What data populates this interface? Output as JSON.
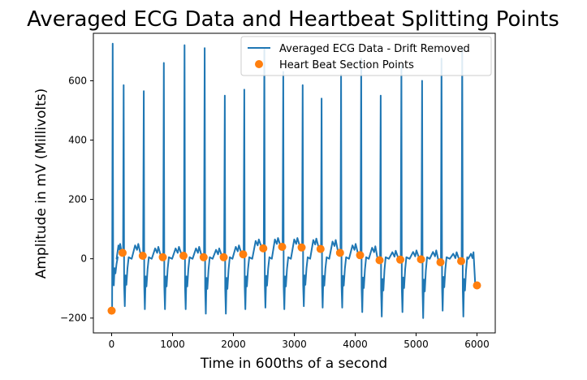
{
  "chart_data": {
    "type": "line",
    "title": "Averaged ECG Data and Heartbeat Splitting Points",
    "xlabel": "Time in 600ths of a second",
    "ylabel": "Amplitude in mV (Millivolts)",
    "xlim": [
      -300,
      6300
    ],
    "ylim": [
      -250,
      760
    ],
    "xticks": [
      0,
      1000,
      2000,
      3000,
      4000,
      5000,
      6000
    ],
    "yticks": [
      -200,
      0,
      200,
      400,
      600
    ],
    "grid": false,
    "legend_position": "top-right",
    "series": [
      {
        "name": "Averaged ECG Data - Drift Removed",
        "kind": "line",
        "color": "#1f77b4",
        "segment_bounds": [
          0,
          180,
          510,
          840,
          1180,
          1510,
          1840,
          2160,
          2490,
          2800,
          3120,
          3430,
          3750,
          4080,
          4400,
          4740,
          5080,
          5400,
          5740,
          6000
        ],
        "peaks": [
          725,
          585,
          565,
          660,
          720,
          710,
          550,
          570,
          710,
          630,
          585,
          540,
          620,
          675,
          550,
          650,
          600,
          675,
          710
        ],
        "troughs": [
          -90,
          -160,
          -170,
          -170,
          -170,
          -185,
          -185,
          -170,
          -165,
          -170,
          -160,
          -165,
          -165,
          -180,
          -195,
          -180,
          -200,
          -175,
          -195
        ],
        "baseline_start": [
          -175,
          20,
          10,
          5,
          10,
          5,
          5,
          15,
          35,
          40,
          38,
          33,
          20,
          12,
          -5,
          -3,
          -2,
          -12,
          -8
        ],
        "baseline_end": [
          20,
          10,
          5,
          10,
          5,
          5,
          15,
          35,
          40,
          38,
          33,
          20,
          12,
          -5,
          -3,
          -2,
          -12,
          -8,
          -90
        ]
      },
      {
        "name": "Heart Beat Section Points",
        "kind": "scatter",
        "color": "#ff7f0e",
        "x": [
          0,
          180,
          510,
          840,
          1180,
          1510,
          1840,
          2160,
          2490,
          2800,
          3120,
          3430,
          3750,
          4080,
          4400,
          4740,
          5080,
          5400,
          5740,
          6000
        ],
        "y": [
          -175,
          20,
          10,
          5,
          10,
          5,
          5,
          15,
          35,
          40,
          38,
          33,
          20,
          12,
          -5,
          -3,
          -2,
          -12,
          -8,
          -90
        ]
      }
    ]
  }
}
